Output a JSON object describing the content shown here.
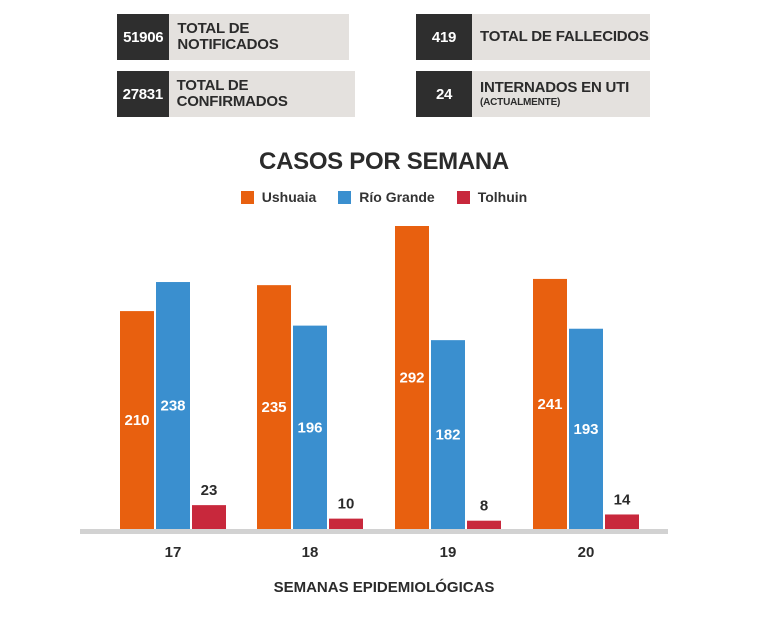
{
  "stats": [
    {
      "value": "51906",
      "label": "TOTAL DE NOTIFICADOS",
      "sub": ""
    },
    {
      "value": "419",
      "label": "TOTAL DE FALLECIDOS",
      "sub": ""
    },
    {
      "value": "27831",
      "label": "TOTAL DE CONFIRMADOS",
      "sub": ""
    },
    {
      "value": "24",
      "label": "INTERNADOS EN UTI",
      "sub": "(ACTUALMENTE)"
    }
  ],
  "chart_data": {
    "type": "bar",
    "title": "CASOS POR SEMANA",
    "xlabel": "SEMANAS EPIDEMIOLÓGICAS",
    "ylabel": "",
    "categories": [
      "17",
      "18",
      "19",
      "20"
    ],
    "series": [
      {
        "name": "Ushuaia",
        "color": "#e8600f",
        "values": [
          210,
          235,
          292,
          241
        ]
      },
      {
        "name": "Río Grande",
        "color": "#3a8fcf",
        "values": [
          238,
          196,
          182,
          193
        ]
      },
      {
        "name": "Tolhuin",
        "color": "#c8283c",
        "values": [
          23,
          10,
          8,
          14
        ]
      }
    ],
    "ylim": [
      0,
      300
    ],
    "grid": false,
    "legend": "top-center"
  },
  "colors": {
    "dark_box": "#2e2e2e",
    "light_box": "#e4e1de"
  }
}
